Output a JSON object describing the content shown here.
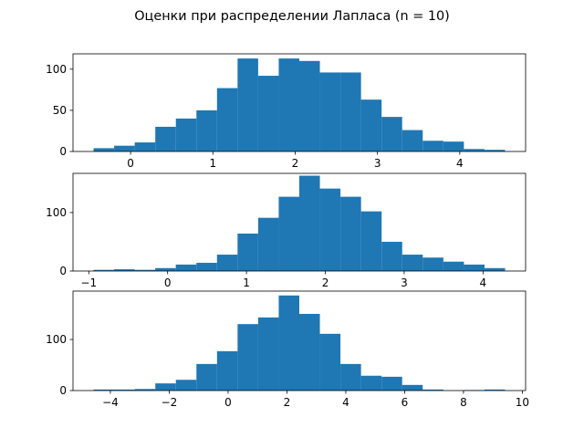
{
  "title": "Оценки при распределении Лапласа (n = 10)",
  "chart_data": [
    {
      "type": "histogram",
      "color": "#1f77b4",
      "bins": [
        -0.45,
        -0.2,
        0.05,
        0.3,
        0.55,
        0.8,
        1.05,
        1.3,
        1.55,
        1.8,
        2.05,
        2.3,
        2.55,
        2.8,
        3.05,
        3.3,
        3.55,
        3.8,
        4.05,
        4.3,
        4.55
      ],
      "values": [
        4,
        7,
        11,
        30,
        40,
        50,
        77,
        113,
        92,
        113,
        110,
        96,
        96,
        63,
        42,
        26,
        13,
        12,
        3,
        2
      ],
      "xlim": [
        -0.7,
        4.8
      ],
      "ylim": [
        0,
        118.65
      ],
      "xticks": [
        0,
        1,
        2,
        3,
        4
      ],
      "yticks": [
        0,
        50,
        100
      ]
    },
    {
      "type": "histogram",
      "color": "#1f77b4",
      "bins": [
        -0.94,
        -0.679,
        -0.418,
        -0.157,
        0.104,
        0.365,
        0.626,
        0.887,
        1.148,
        1.409,
        1.67,
        1.931,
        2.192,
        2.453,
        2.714,
        2.975,
        3.236,
        3.497,
        3.758,
        4.019,
        4.28
      ],
      "values": [
        2,
        3,
        2,
        5,
        11,
        14,
        28,
        64,
        91,
        127,
        163,
        141,
        127,
        102,
        50,
        28,
        23,
        16,
        11,
        5
      ],
      "xlim": [
        -1.2,
        4.54
      ],
      "ylim": [
        0,
        167
      ],
      "xticks": [
        {
          "value": -1,
          "label": "−1"
        },
        0,
        1,
        2,
        3,
        4
      ],
      "yticks": [
        0,
        100
      ]
    },
    {
      "type": "histogram",
      "color": "#1f77b4",
      "bins": [
        -4.57,
        -3.871,
        -3.172,
        -2.473,
        -1.774,
        -1.075,
        -0.376,
        0.323,
        1.022,
        1.721,
        2.42,
        3.119,
        3.818,
        4.517,
        5.216,
        5.915,
        6.614,
        7.313,
        8.012,
        8.711,
        9.41
      ],
      "values": [
        2,
        2,
        3,
        14,
        21,
        52,
        77,
        130,
        143,
        186,
        150,
        111,
        52,
        29,
        27,
        11,
        2,
        0,
        1,
        2
      ],
      "xlim": [
        -5.27,
        10.11
      ],
      "ylim": [
        0,
        194.6
      ],
      "xticks": [
        {
          "value": -4,
          "label": "−4"
        },
        {
          "value": -2,
          "label": "−2"
        },
        0,
        2,
        4,
        6,
        8,
        10
      ],
      "yticks": [
        0,
        100
      ]
    }
  ]
}
